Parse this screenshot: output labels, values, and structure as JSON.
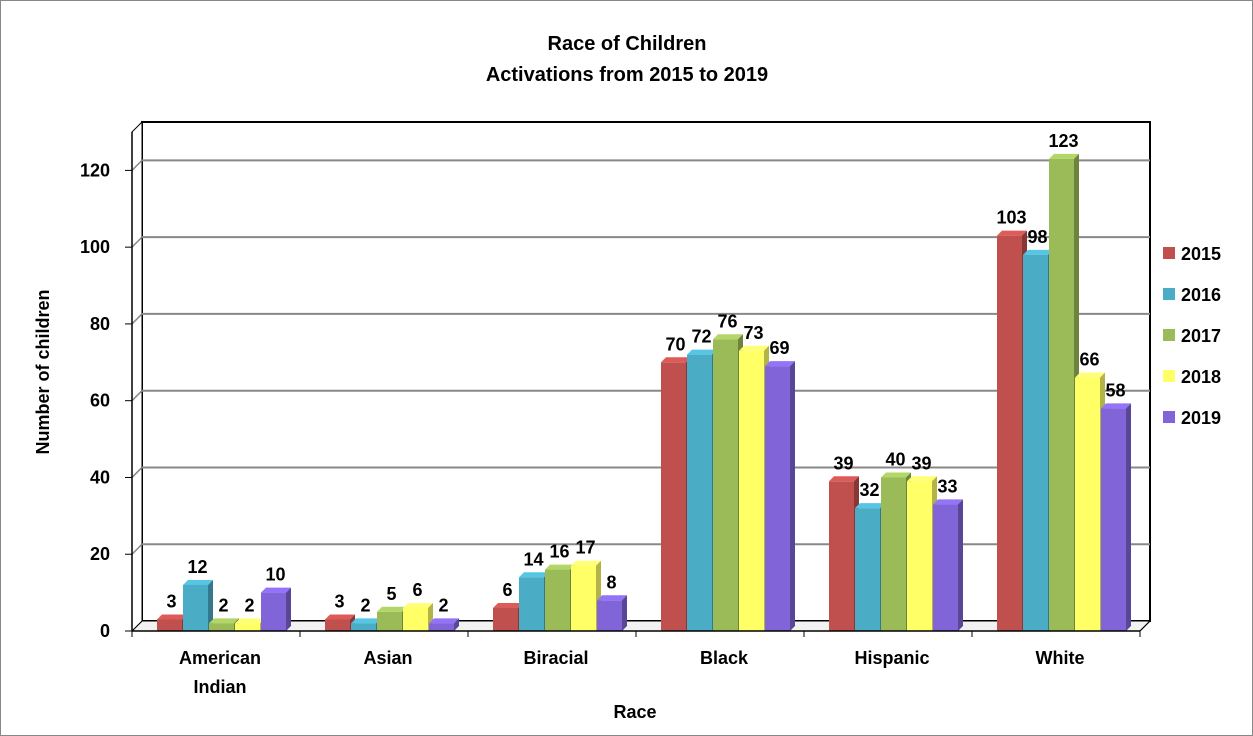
{
  "chart_data": {
    "type": "bar",
    "title": "Race of Children",
    "subtitle": "Activations from 2015 to 2019",
    "xlabel": "Race",
    "ylabel": "Number of children",
    "ylim": [
      0,
      130
    ],
    "yticks": [
      "0",
      "20",
      "40",
      "60",
      "80",
      "100",
      "120"
    ],
    "categories": [
      "American Indian",
      "Asian",
      "Biracial",
      "Black",
      "Hispanic",
      "White"
    ],
    "series": [
      {
        "name": "2015",
        "color": "#c0504d",
        "values": [
          3,
          3,
          6,
          70,
          39,
          103
        ]
      },
      {
        "name": "2016",
        "color": "#4bacc6",
        "values": [
          12,
          2,
          14,
          72,
          32,
          98
        ]
      },
      {
        "name": "2017",
        "color": "#9bbb59",
        "values": [
          2,
          5,
          16,
          76,
          40,
          123
        ]
      },
      {
        "name": "2018",
        "color": "#ffff66",
        "values": [
          2,
          6,
          17,
          73,
          39,
          66
        ]
      },
      {
        "name": "2019",
        "color": "#8064d8",
        "values": [
          10,
          2,
          8,
          69,
          33,
          58
        ]
      }
    ],
    "grid": true,
    "legend_position": "right"
  }
}
